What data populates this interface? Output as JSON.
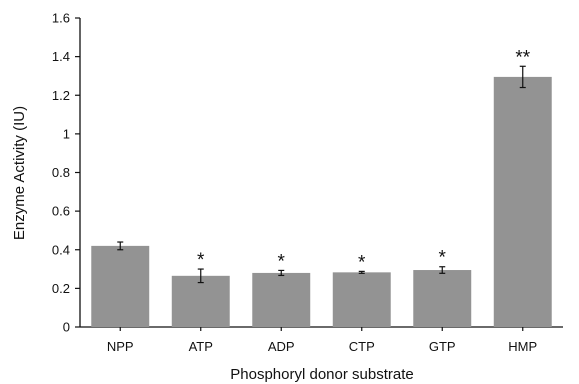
{
  "chart_data": {
    "type": "bar",
    "categories": [
      "NPP",
      "ATP",
      "ADP",
      "CTP",
      "GTP",
      "HMP"
    ],
    "values": [
      0.42,
      0.265,
      0.28,
      0.283,
      0.295,
      1.295
    ],
    "errors": [
      0.02,
      0.035,
      0.013,
      0.005,
      0.017,
      0.055
    ],
    "significance": [
      "",
      "*",
      "*",
      "*",
      "*",
      "**"
    ],
    "xlabel": "Phosphoryl donor substrate",
    "ylabel": "Enzyme Activity (IU)",
    "ylim": [
      0,
      1.6
    ],
    "yticks": [
      "0",
      "0.2",
      "0.4",
      "0.6",
      "0.8",
      "1",
      "1.2",
      "1.4",
      "1.6"
    ],
    "bar_color": "#939393",
    "grid": false,
    "legend": "none"
  }
}
